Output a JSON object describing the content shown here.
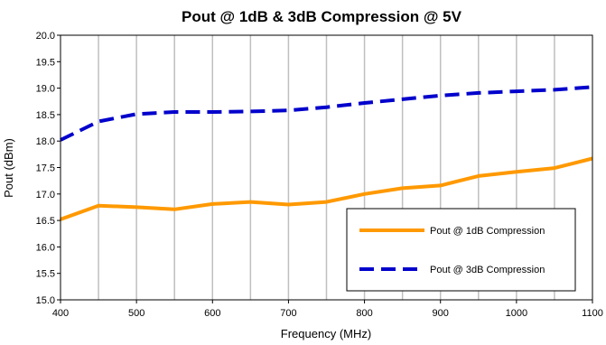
{
  "chart_data": {
    "type": "line",
    "title": "Pout @ 1dB & 3dB Compression @ 5V",
    "xlabel": "Frequency (MHz)",
    "ylabel": "Pout (dBm)",
    "xlim": [
      400,
      1100
    ],
    "ylim": [
      15.0,
      20.0
    ],
    "x_ticks": [
      "400",
      "500",
      "600",
      "700",
      "800",
      "900",
      "1000",
      "1100"
    ],
    "y_ticks": [
      "15.0",
      "15.5",
      "16.0",
      "16.5",
      "17.0",
      "17.5",
      "18.0",
      "18.5",
      "19.0",
      "19.5",
      "20.0"
    ],
    "x_tick_values": [
      400,
      500,
      600,
      700,
      800,
      900,
      1000,
      1100
    ],
    "y_tick_values": [
      15.0,
      15.5,
      16.0,
      16.5,
      17.0,
      17.5,
      18.0,
      18.5,
      19.0,
      19.5,
      20.0
    ],
    "x_grid_values": [
      450,
      500,
      550,
      600,
      650,
      700,
      750,
      800,
      850,
      900,
      950,
      1000,
      1050
    ],
    "grid": "vertical",
    "legend_position": "bottom-right",
    "x": [
      400,
      450,
      500,
      550,
      600,
      650,
      700,
      750,
      800,
      850,
      900,
      950,
      1000,
      1050,
      1100
    ],
    "series": [
      {
        "name": "Pout @ 1dB Compression",
        "color": "#ff9900",
        "style": "solid",
        "values": [
          16.52,
          16.78,
          16.75,
          16.71,
          16.81,
          16.85,
          16.8,
          16.85,
          17.0,
          17.11,
          17.16,
          17.34,
          17.42,
          17.49,
          17.67
        ]
      },
      {
        "name": "Pout @ 3dB Compression",
        "color": "#0000cc",
        "style": "dashed",
        "values": [
          18.02,
          18.37,
          18.51,
          18.55,
          18.55,
          18.56,
          18.58,
          18.64,
          18.72,
          18.79,
          18.86,
          18.91,
          18.94,
          18.97,
          19.02
        ]
      }
    ]
  }
}
